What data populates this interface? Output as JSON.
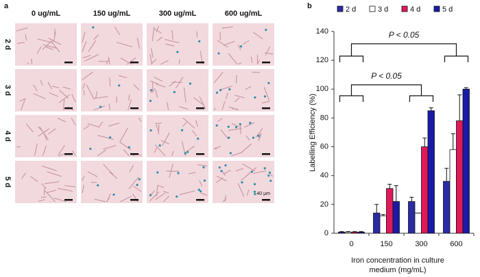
{
  "panel_a": {
    "label": "a",
    "columns": [
      "0 ug/mL",
      "150 ug/mL",
      "300 ug/mL",
      "600 ug/mL"
    ],
    "rows": [
      "2 d",
      "3 d",
      "4 d",
      "5 d"
    ],
    "scale_label": "40 μm"
  },
  "chart_data": {
    "type": "bar",
    "label": "b",
    "categories": [
      "0",
      "150",
      "300",
      "600"
    ],
    "series": [
      {
        "name": "2 d",
        "color": "#2b2ba6",
        "values": [
          0.8,
          14,
          22,
          36
        ],
        "errors": [
          0.3,
          6,
          3,
          9
        ]
      },
      {
        "name": "3 d",
        "color": "#ffffff",
        "values": [
          0.8,
          12,
          14,
          58
        ],
        "errors": [
          0.3,
          1,
          0,
          11
        ]
      },
      {
        "name": "4 d",
        "color": "#e0195a",
        "values": [
          0.8,
          31,
          60,
          78
        ],
        "errors": [
          0.3,
          3,
          6,
          18
        ]
      },
      {
        "name": "5 d",
        "color": "#1a1aa8",
        "values": [
          0.8,
          22,
          85,
          100
        ],
        "errors": [
          0.3,
          11,
          2,
          1
        ]
      }
    ],
    "ylabel": "Labelling Efficiency (%)",
    "xlabel": [
      "Iron concentration in culture",
      "medium (mg/mL)"
    ],
    "ylim": [
      0,
      140
    ],
    "yticks": [
      0,
      20,
      40,
      60,
      80,
      100,
      120,
      140
    ],
    "annotations": [
      {
        "text": "P < 0.05"
      },
      {
        "text": "P < 0.05"
      }
    ]
  }
}
